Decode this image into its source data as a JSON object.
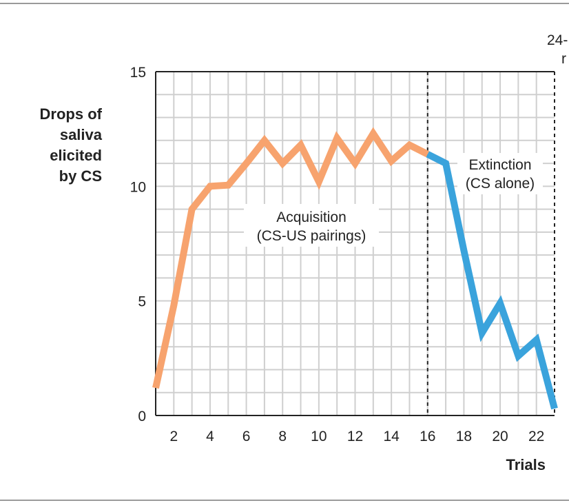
{
  "chart_data": {
    "type": "line",
    "title": "",
    "xlabel": "Trials",
    "ylabel_lines": [
      "Drops of",
      "saliva",
      "elicited",
      "by CS"
    ],
    "xlim": [
      1,
      23
    ],
    "ylim": [
      0,
      15
    ],
    "x_ticks": [
      2,
      4,
      6,
      8,
      10,
      12,
      14,
      16,
      18,
      20,
      22
    ],
    "y_ticks": [
      0,
      5,
      10,
      15
    ],
    "grid": true,
    "series": [
      {
        "color": "#f7a36e",
        "x": [
          1,
          2,
          3,
          4,
          5,
          6,
          7,
          8,
          9,
          10,
          11,
          12,
          13,
          14,
          15,
          16
        ],
        "y": [
          1.2,
          4.8,
          9.0,
          10.0,
          10.05,
          11.0,
          12.0,
          11.0,
          11.8,
          10.2,
          12.1,
          11.0,
          12.3,
          11.1,
          11.8,
          11.4
        ]
      },
      {
        "color": "#3aa3dc",
        "x": [
          16,
          17,
          18,
          19,
          20,
          21,
          22,
          23
        ],
        "y": [
          11.4,
          11.0,
          7.2,
          3.6,
          4.9,
          2.6,
          3.3,
          0.3
        ]
      }
    ],
    "dashed_lines_x": [
      16,
      23
    ],
    "annotations": {
      "acquisition": [
        "Acquisition",
        "(CS-US pairings)"
      ],
      "extinction": [
        "Extinction",
        "(CS alone)"
      ],
      "top_right_partial": [
        "24-",
        "r"
      ]
    }
  }
}
